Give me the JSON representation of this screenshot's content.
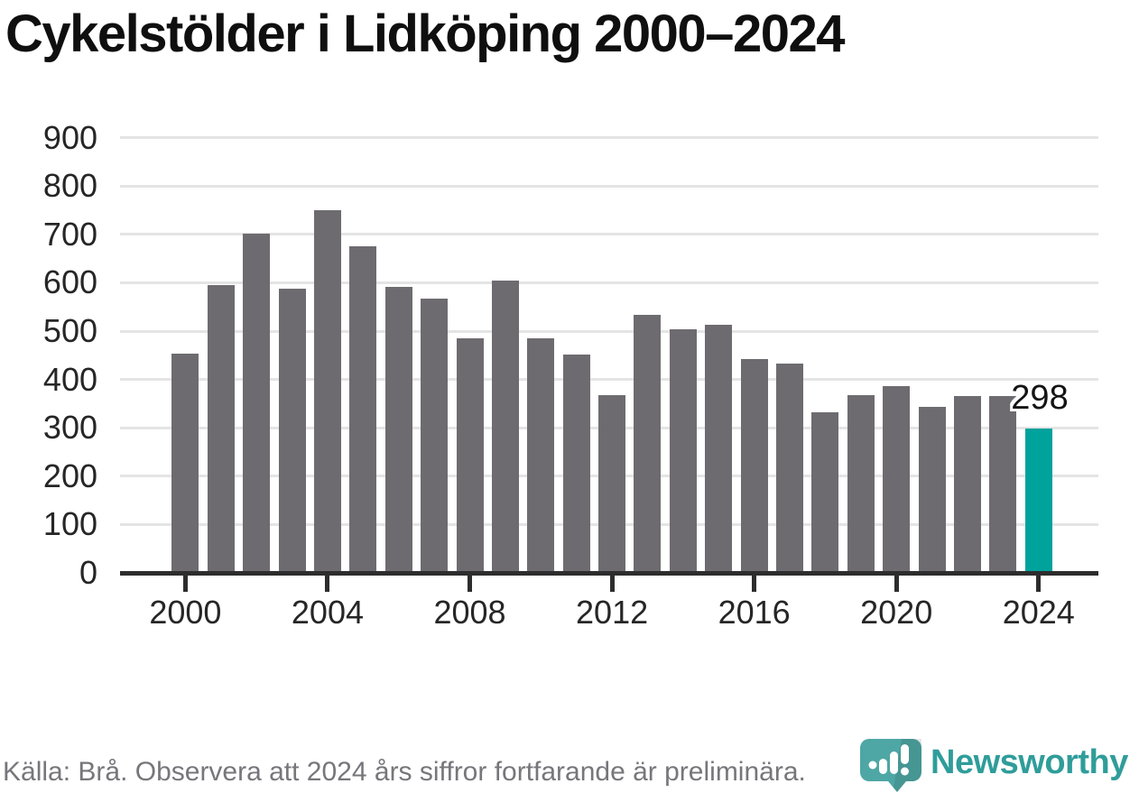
{
  "chart_data": {
    "type": "bar",
    "title": "Cykelstölder i Lidköping 2000–2024",
    "x": [
      2000,
      2001,
      2002,
      2003,
      2004,
      2005,
      2006,
      2007,
      2008,
      2009,
      2010,
      2011,
      2012,
      2013,
      2014,
      2015,
      2016,
      2017,
      2018,
      2019,
      2020,
      2021,
      2022,
      2023,
      2024
    ],
    "values": [
      453,
      596,
      702,
      588,
      750,
      676,
      592,
      567,
      486,
      605,
      486,
      452,
      368,
      534,
      503,
      513,
      443,
      432,
      332,
      368,
      386,
      344,
      366,
      366,
      298
    ],
    "highlight": {
      "x": 2024,
      "value": 298,
      "label": "298"
    },
    "ylim": [
      0,
      900
    ],
    "yticks": [
      0,
      100,
      200,
      300,
      400,
      500,
      600,
      700,
      800,
      900
    ],
    "xticks": [
      2000,
      2004,
      2008,
      2012,
      2016,
      2020,
      2024
    ],
    "grid": true,
    "legend": false,
    "colors": {
      "bar": "#6e6b70",
      "highlight": "#00a29c",
      "grid": "#e4e4e4",
      "axis": "#2d2d2d",
      "tick_label": "#262626"
    }
  },
  "footer": {
    "source_text": "Källa: Brå. Observera att 2024 års siffror fortfarande är preliminära."
  },
  "branding": {
    "logo_text": "Newsworthy",
    "logo_color": "#2f9d9a",
    "logo_icon": "newsworthy-pin-chart-icon"
  }
}
